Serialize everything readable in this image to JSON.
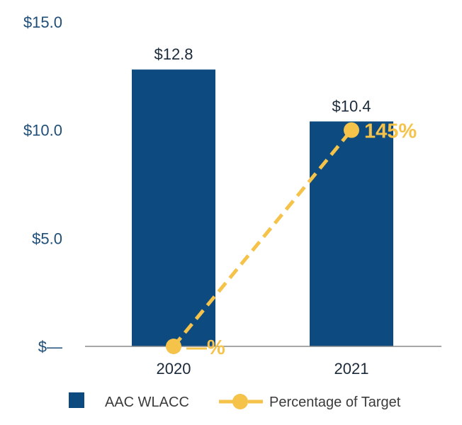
{
  "chart_data": {
    "type": "bar",
    "categories": [
      "2020",
      "2021"
    ],
    "series": [
      {
        "name": "AAC WLACC",
        "kind": "bar",
        "values": [
          12.8,
          10.4
        ],
        "labels": [
          "$12.8",
          "$10.4"
        ],
        "color": "#0d4a7f"
      },
      {
        "name": "Percentage of Target",
        "kind": "line",
        "values": [
          0,
          10.0
        ],
        "labels": [
          "—%",
          "145%"
        ],
        "color": "#f5c24a"
      }
    ],
    "ylim": [
      0,
      15
    ],
    "yticks": [
      0,
      5,
      10,
      15
    ],
    "ytick_labels": [
      "$—",
      "$5.0",
      "$10.0",
      "$15.0"
    ],
    "grid": false,
    "legend_position": "bottom-left",
    "axis_color": "#8a8a8a",
    "ytick_color": "#1f4e79"
  }
}
